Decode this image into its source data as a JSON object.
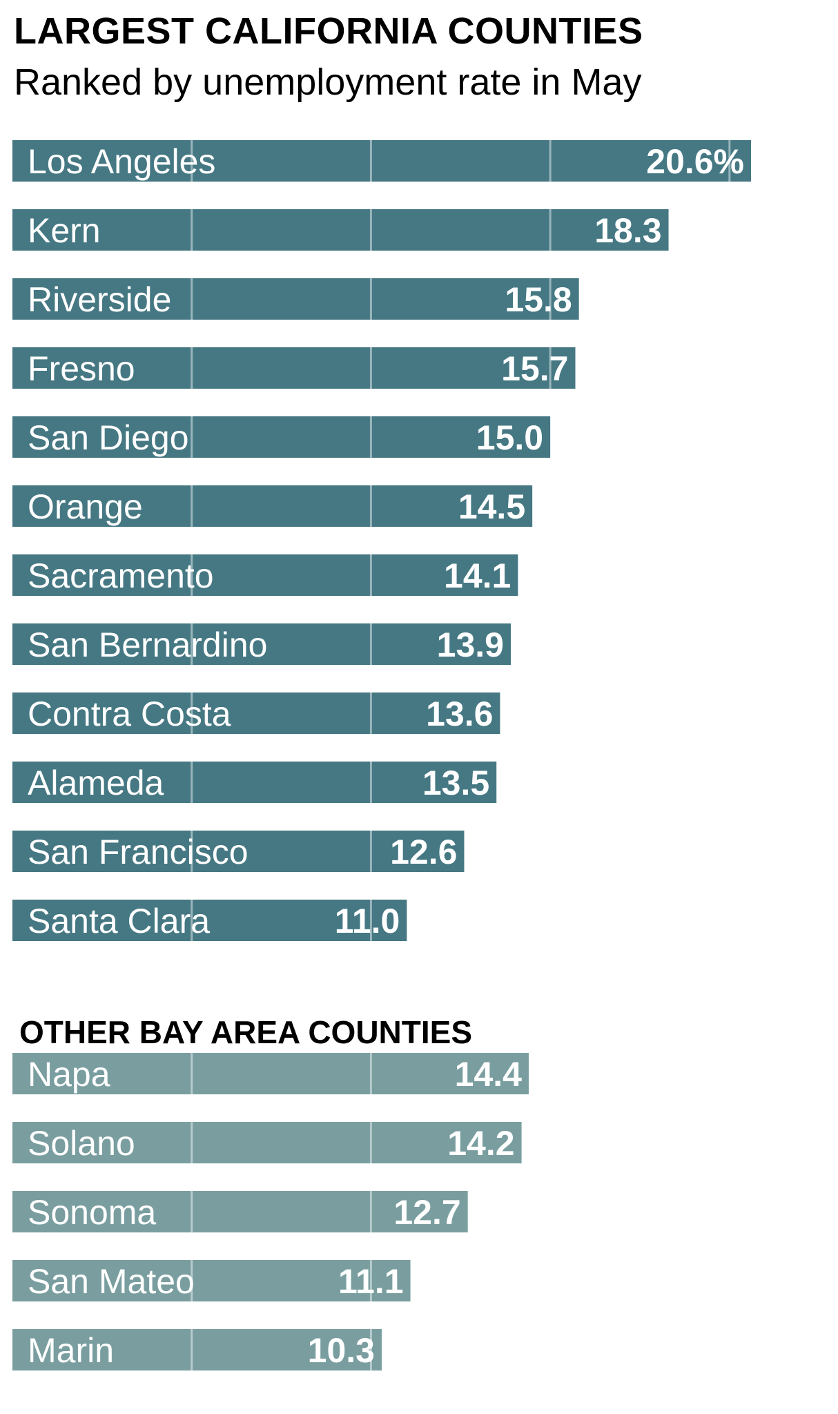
{
  "chart_data": {
    "type": "bar",
    "orientation": "horizontal",
    "title": "LARGEST CALIFORNIA COUNTIES",
    "subtitle": "Ranked by unemployment rate in May",
    "unit_suffix": "%",
    "xlim": [
      0,
      20.6
    ],
    "grid": true,
    "grid_interval": 5,
    "sections": [
      {
        "heading": "",
        "color": "#457883",
        "categories": [
          "Los Angeles",
          "Kern",
          "Riverside",
          "Fresno",
          "San Diego",
          "Orange",
          "Sacramento",
          "San Bernardino",
          "Contra Costa",
          "Alameda",
          "San Francisco",
          "Santa Clara"
        ],
        "values": [
          20.6,
          18.3,
          15.8,
          15.7,
          15.0,
          14.5,
          14.1,
          13.9,
          13.6,
          13.5,
          12.6,
          11.0
        ],
        "value_labels": [
          "20.6%",
          "18.3",
          "15.8",
          "15.7",
          "15.0",
          "14.5",
          "14.1",
          "13.9",
          "13.6",
          "13.5",
          "12.6",
          "11.0"
        ]
      },
      {
        "heading": "OTHER BAY AREA COUNTIES",
        "color": "#7a9ea0",
        "categories": [
          "Napa",
          "Solano",
          "Sonoma",
          "San Mateo",
          "Marin"
        ],
        "values": [
          14.4,
          14.2,
          12.7,
          11.1,
          10.3
        ],
        "value_labels": [
          "14.4",
          "14.2",
          "12.7",
          "11.1",
          "10.3"
        ]
      }
    ]
  }
}
